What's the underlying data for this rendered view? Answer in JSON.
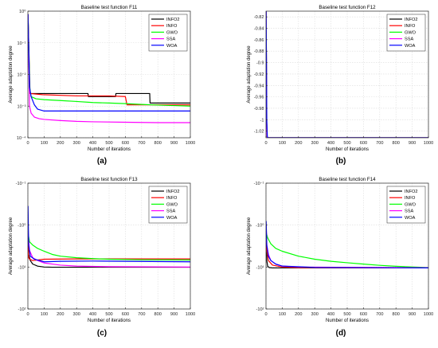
{
  "chart_data": [
    {
      "type": "line",
      "panel": "(a)",
      "title": "Baseline test function F11",
      "xlabel": "Number of iterations",
      "ylabel": "Average adaptation degree",
      "xlim": [
        0,
        1000
      ],
      "ylim": [
        0.0001,
        1
      ],
      "yscale": "log",
      "xticks": [
        0,
        100,
        200,
        300,
        400,
        500,
        600,
        700,
        800,
        900,
        1000
      ],
      "yticks": [
        {
          "value": 1,
          "label": "10⁰"
        },
        {
          "value": 0.1,
          "label": "10⁻¹"
        },
        {
          "value": 0.01,
          "label": "10⁻²"
        },
        {
          "value": 0.001,
          "label": "10⁻³"
        },
        {
          "value": 0.0001,
          "label": "10⁻⁴"
        }
      ],
      "grid": true,
      "legend": "top-right",
      "series": [
        {
          "name": "INFO2",
          "color": "#000000",
          "x": [
            1,
            12,
            14,
            370,
            372,
            540,
            542,
            750,
            752,
            1000
          ],
          "y": [
            0.8,
            0.004,
            0.0025,
            0.0025,
            0.002,
            0.002,
            0.0025,
            0.0025,
            0.00125,
            0.00125
          ]
        },
        {
          "name": "INFO",
          "color": "#ff0000",
          "x": [
            1,
            10,
            12,
            90,
            300,
            500,
            600,
            610,
            1000
          ],
          "y": [
            0.8,
            0.003,
            0.0025,
            0.0023,
            0.0021,
            0.0021,
            0.002,
            0.0011,
            0.0011
          ]
        },
        {
          "name": "GWO",
          "color": "#00ff00",
          "x": [
            1,
            10,
            20,
            50,
            100,
            200,
            300,
            400,
            500,
            600,
            700,
            800,
            900,
            1000
          ],
          "y": [
            0.8,
            0.004,
            0.002,
            0.0017,
            0.0016,
            0.0015,
            0.0014,
            0.0013,
            0.00125,
            0.0012,
            0.00113,
            0.00108,
            0.00104,
            0.001
          ]
        },
        {
          "name": "SSA",
          "color": "#ff00ff",
          "x": [
            1,
            10,
            20,
            40,
            70,
            100,
            200,
            300,
            400,
            600,
            800,
            1000
          ],
          "y": [
            0.8,
            0.001,
            0.0006,
            0.00045,
            0.0004,
            0.00038,
            0.00035,
            0.00033,
            0.00032,
            0.00031,
            0.0003,
            0.0003
          ]
        },
        {
          "name": "WOA",
          "color": "#0000ff",
          "x": [
            1,
            10,
            20,
            40,
            60,
            100,
            1000
          ],
          "y": [
            0.8,
            0.004,
            0.002,
            0.0011,
            0.0008,
            0.0007,
            0.0007
          ]
        }
      ]
    },
    {
      "type": "line",
      "panel": "(b)",
      "title": "Baseline test function F12",
      "xlabel": "Number of iterations",
      "ylabel": "Average adaptation degree",
      "xlim": [
        0,
        1000
      ],
      "ylim": [
        -1.0316,
        -0.81
      ],
      "yscale": "linear",
      "xticks": [
        0,
        100,
        200,
        300,
        400,
        500,
        600,
        700,
        800,
        900,
        1000
      ],
      "yticks": [
        {
          "value": -0.82,
          "label": "-0.82"
        },
        {
          "value": -0.84,
          "label": "-0.84"
        },
        {
          "value": -0.86,
          "label": "-0.86"
        },
        {
          "value": -0.88,
          "label": "-0.88"
        },
        {
          "value": -0.9,
          "label": "-0.9"
        },
        {
          "value": -0.92,
          "label": "-0.92"
        },
        {
          "value": -0.94,
          "label": "-0.94"
        },
        {
          "value": -0.96,
          "label": "-0.96"
        },
        {
          "value": -0.98,
          "label": "-0.98"
        },
        {
          "value": -1.0,
          "label": "-1"
        },
        {
          "value": -1.02,
          "label": "-1.02"
        }
      ],
      "grid": true,
      "legend": "top-right",
      "series": [
        {
          "name": "INFO2",
          "color": "#000000",
          "x": [
            1,
            4,
            6,
            8,
            1000
          ],
          "y": [
            -0.81,
            -1.0,
            -1.028,
            -1.0316,
            -1.0316
          ]
        },
        {
          "name": "INFO",
          "color": "#ff0000",
          "x": [
            1,
            4,
            6,
            8,
            1000
          ],
          "y": [
            -0.81,
            -1.0,
            -1.028,
            -1.0316,
            -1.0316
          ]
        },
        {
          "name": "GWO",
          "color": "#00ff00",
          "x": [
            1,
            4,
            6,
            8,
            1000
          ],
          "y": [
            -0.81,
            -1.0,
            -1.028,
            -1.0316,
            -1.0316
          ]
        },
        {
          "name": "SSA",
          "color": "#ff00ff",
          "x": [
            1,
            4,
            6,
            8,
            1000
          ],
          "y": [
            -0.81,
            -1.0,
            -1.028,
            -1.0316,
            -1.0316
          ]
        },
        {
          "name": "WOA",
          "color": "#0000ff",
          "x": [
            1,
            5,
            8,
            10,
            1000
          ],
          "y": [
            -0.81,
            -1.0,
            -1.028,
            -1.0316,
            -1.0316
          ]
        }
      ]
    },
    {
      "type": "line",
      "panel": "(c)",
      "title": "Baseline test function F13",
      "xlabel": "Number of iterations",
      "ylabel": "Average adaptation degree",
      "xlim": [
        0,
        1000
      ],
      "ylim": [
        -100,
        -0.1
      ],
      "yscale": "log-negative",
      "xticks": [
        0,
        100,
        200,
        300,
        400,
        500,
        600,
        700,
        800,
        900,
        1000
      ],
      "yticks": [
        {
          "value": -0.1,
          "label": "-10⁻¹"
        },
        {
          "value": -1,
          "label": "-10⁰"
        },
        {
          "value": -10,
          "label": "-10¹"
        },
        {
          "value": -100,
          "label": "-10²"
        }
      ],
      "grid": true,
      "legend": "top-right",
      "series": [
        {
          "name": "INFO2",
          "color": "#000000",
          "x": [
            1,
            5,
            15,
            30,
            60,
            100,
            150,
            1000
          ],
          "y": [
            -1.5,
            -5,
            -7,
            -8.5,
            -9.5,
            -10,
            -10.1,
            -10.1
          ]
        },
        {
          "name": "INFO",
          "color": "#ff0000",
          "x": [
            1,
            5,
            10,
            30,
            100,
            300,
            500,
            1000
          ],
          "y": [
            -2,
            -6,
            -6.5,
            -7,
            -6.5,
            -6.4,
            -6.4,
            -6.4
          ]
        },
        {
          "name": "GWO",
          "color": "#00ff00",
          "x": [
            1,
            10,
            30,
            60,
            100,
            150,
            200,
            300,
            400,
            500,
            700,
            1000
          ],
          "y": [
            -1.5,
            -2.5,
            -3,
            -3.6,
            -4.2,
            -5,
            -5.5,
            -6,
            -6.3,
            -6.5,
            -6.7,
            -6.8
          ]
        },
        {
          "name": "SSA",
          "color": "#ff00ff",
          "x": [
            1,
            10,
            30,
            60,
            100,
            200,
            300,
            500,
            1000
          ],
          "y": [
            -1.5,
            -4,
            -6,
            -7,
            -8,
            -9,
            -9.5,
            -9.8,
            -10
          ]
        },
        {
          "name": "WOA",
          "color": "#0000ff",
          "x": [
            1,
            5,
            15,
            40,
            100,
            200,
            400,
            600,
            1000
          ],
          "y": [
            -0.35,
            -3,
            -5.5,
            -6.5,
            -7.5,
            -7.3,
            -7.2,
            -7.3,
            -7.5
          ]
        }
      ]
    },
    {
      "type": "line",
      "panel": "(d)",
      "title": "Baseline test function F14",
      "xlabel": "Number of iterations",
      "ylabel": "Average adaptation degree",
      "xlim": [
        0,
        1000
      ],
      "ylim": [
        -100,
        -0.1
      ],
      "yscale": "log-negative",
      "xticks": [
        0,
        100,
        200,
        300,
        400,
        500,
        600,
        700,
        800,
        900,
        1000
      ],
      "yticks": [
        {
          "value": -0.1,
          "label": "-10⁻¹"
        },
        {
          "value": -1,
          "label": "-10⁰"
        },
        {
          "value": -10,
          "label": "-10¹"
        },
        {
          "value": -100,
          "label": "-10²"
        }
      ],
      "grid": true,
      "legend": "top-right",
      "series": [
        {
          "name": "INFO2",
          "color": "#000000",
          "x": [
            1,
            5,
            10,
            20,
            40,
            1000
          ],
          "y": [
            -1,
            -7,
            -9.5,
            -10.3,
            -10.5,
            -10.5
          ]
        },
        {
          "name": "INFO",
          "color": "#ff0000",
          "x": [
            1,
            5,
            15,
            40,
            100,
            200,
            1000
          ],
          "y": [
            -1,
            -4,
            -7,
            -9,
            -10,
            -10.3,
            -10.5
          ]
        },
        {
          "name": "GWO",
          "color": "#00ff00",
          "x": [
            1,
            10,
            30,
            60,
            100,
            200,
            300,
            400,
            500,
            600,
            700,
            800,
            1000
          ],
          "y": [
            -1.5,
            -2,
            -2.8,
            -3.6,
            -4.2,
            -5.5,
            -6.5,
            -7.3,
            -7.9,
            -8.5,
            -9.1,
            -9.6,
            -10.3
          ]
        },
        {
          "name": "SSA",
          "color": "#ff00ff",
          "x": [
            1,
            5,
            15,
            30,
            60,
            100,
            200,
            1000
          ],
          "y": [
            -1,
            -3,
            -5,
            -7,
            -8.5,
            -9.5,
            -10,
            -10.4
          ]
        },
        {
          "name": "WOA",
          "color": "#0000ff",
          "x": [
            1,
            5,
            15,
            30,
            60,
            100,
            300,
            1000
          ],
          "y": [
            -0.8,
            -3,
            -5.5,
            -7,
            -8.5,
            -9.5,
            -10.2,
            -10.5
          ]
        }
      ]
    }
  ]
}
